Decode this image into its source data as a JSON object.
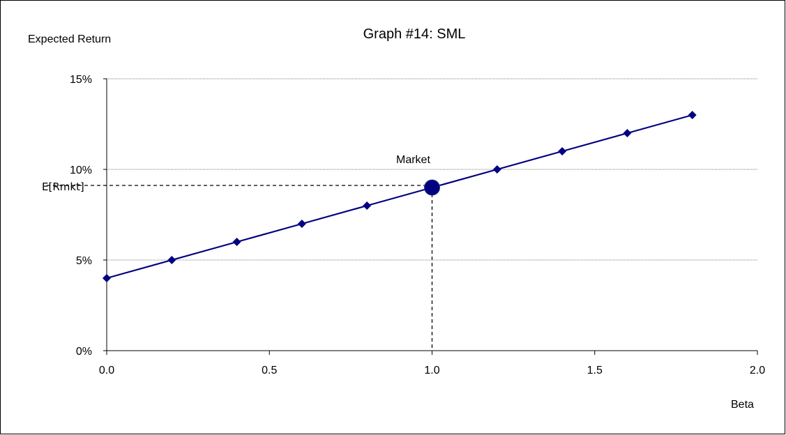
{
  "chart_data": {
    "type": "line",
    "title": "Graph #14: SML",
    "xlabel": "Beta",
    "ylabel": "Expected Return",
    "xlim": [
      0,
      2.0
    ],
    "ylim": [
      0,
      0.15
    ],
    "x_ticks": [
      "0.0",
      "0.5",
      "1.0",
      "1.5",
      "2.0"
    ],
    "y_ticks": [
      "0%",
      "5%",
      "10%",
      "15%"
    ],
    "grid": "horizontal",
    "series": [
      {
        "x": [
          0.0,
          0.2,
          0.4,
          0.6,
          0.8,
          1.0,
          1.2,
          1.4,
          1.6,
          1.8
        ],
        "y": [
          0.04,
          0.05,
          0.06,
          0.07,
          0.08,
          0.09,
          0.1,
          0.11,
          0.12,
          0.13
        ],
        "color": "#000080",
        "marker": "diamond"
      }
    ],
    "market_point": {
      "x": 1.0,
      "y": 0.09,
      "label": "Market"
    },
    "annotations": {
      "e_rmkt_label": "E[Rmkt]"
    }
  }
}
